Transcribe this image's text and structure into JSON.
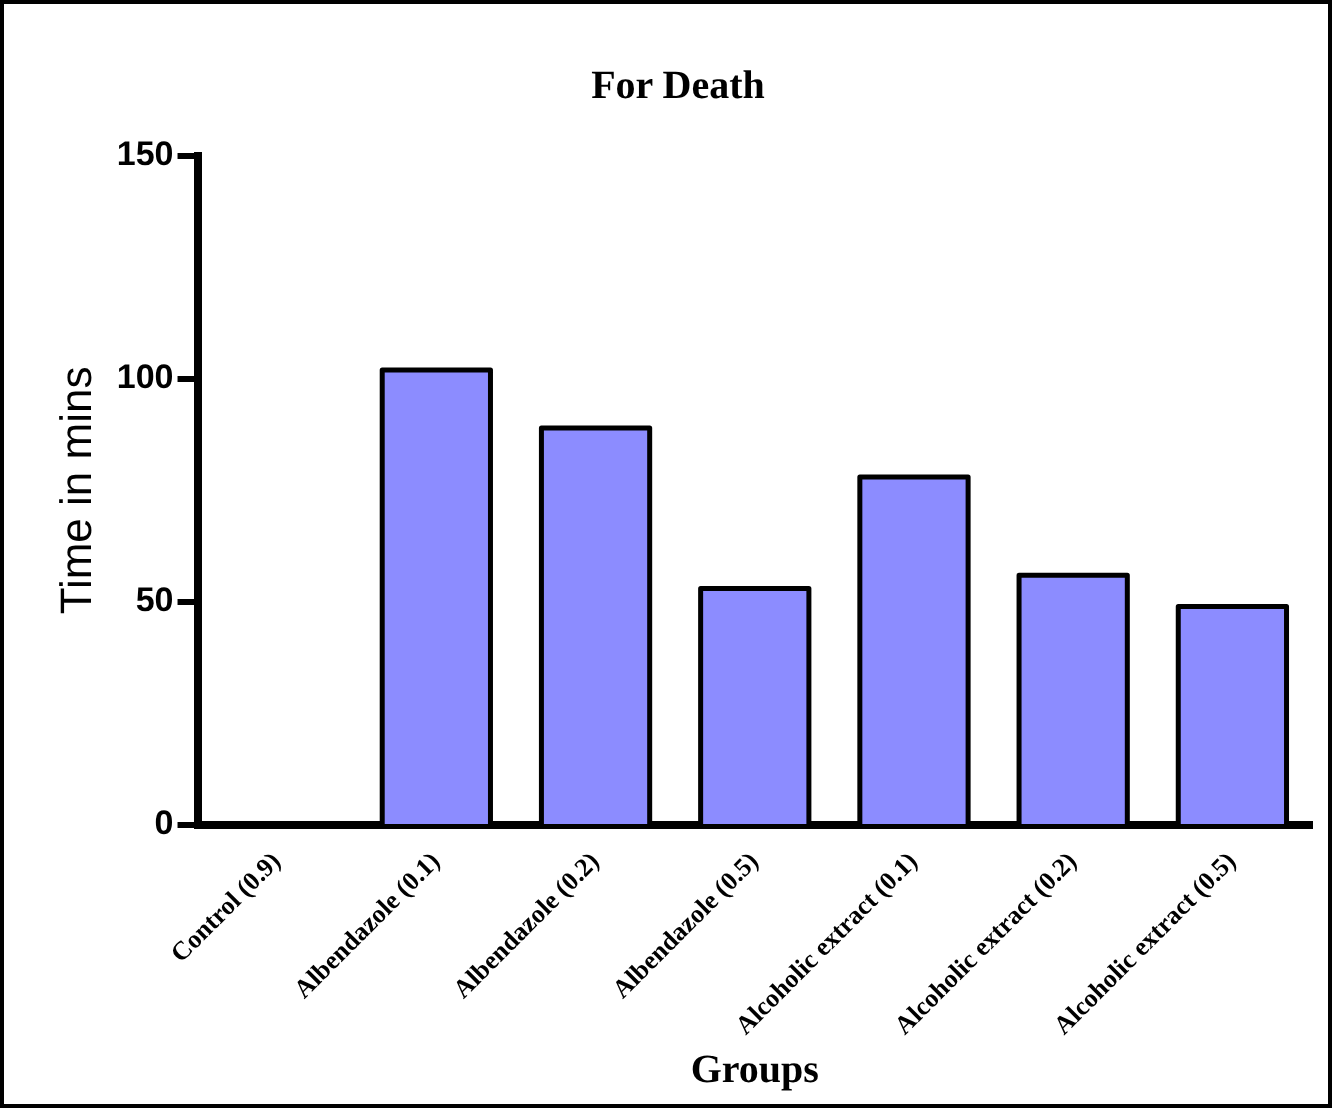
{
  "chart_data": {
    "type": "bar",
    "title": "For Death",
    "xlabel": "Groups",
    "ylabel": "Time in mins",
    "categories": [
      "Control (0.9)",
      "Albendazole (0.1)",
      "Albendazole (0.2)",
      "Albendazole (0.5)",
      "Alcoholic extract (0.1)",
      "Alcoholic extract (0.2)",
      "Alcoholic extract (0.5)"
    ],
    "values": [
      0,
      102,
      89,
      53,
      78,
      56,
      49
    ],
    "color": "#8c8cff",
    "ylim": [
      0,
      150
    ],
    "yticks": [
      0,
      50,
      100,
      150
    ],
    "grid": false,
    "legend": false
  }
}
